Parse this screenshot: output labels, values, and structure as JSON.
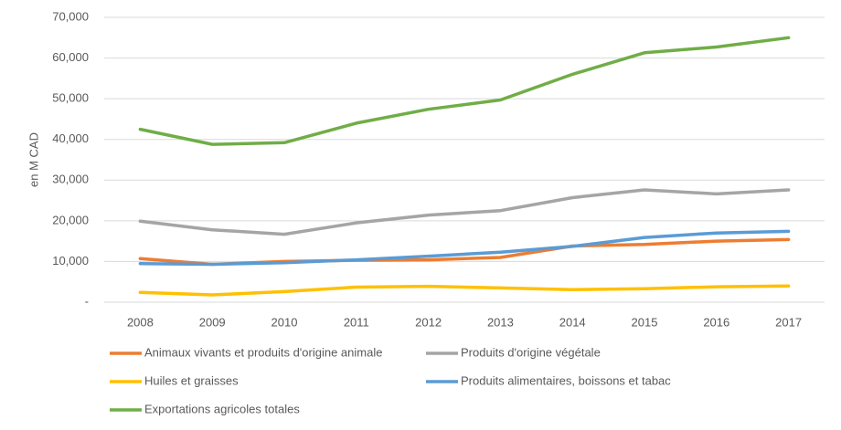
{
  "chart_data": {
    "type": "line",
    "y_label": "en M CAD",
    "categories": [
      "2008",
      "2009",
      "2010",
      "2011",
      "2012",
      "2013",
      "2014",
      "2015",
      "2016",
      "2017"
    ],
    "series": [
      {
        "name": "Animaux vivants et produits d'origine animale",
        "color": "#ed7d31",
        "values": [
          10700,
          9300,
          10000,
          10300,
          10400,
          11000,
          13800,
          14200,
          15000,
          15400
        ]
      },
      {
        "name": "Produits d'origine végétale",
        "color": "#a5a5a5",
        "values": [
          19900,
          17800,
          16700,
          19500,
          21400,
          22500,
          25700,
          27600,
          26600,
          27600
        ]
      },
      {
        "name": "Huiles et graisses",
        "color": "#ffc000",
        "values": [
          2400,
          1800,
          2600,
          3700,
          3900,
          3500,
          3100,
          3300,
          3800,
          4000
        ]
      },
      {
        "name": "Produits alimentaires, boissons et tabac",
        "color": "#5b9bd5",
        "values": [
          9500,
          9300,
          9700,
          10400,
          11300,
          12300,
          13700,
          15900,
          17000,
          17400
        ]
      },
      {
        "name": "Exportations agricoles totales",
        "color": "#70ad47",
        "values": [
          42500,
          38800,
          39200,
          44000,
          47400,
          49700,
          56000,
          61300,
          62700,
          65000
        ]
      }
    ],
    "ylim": [
      0,
      70000
    ],
    "yticks": [
      {
        "value": 0,
        "label": "-"
      },
      {
        "value": 10000,
        "label": "10,000"
      },
      {
        "value": 20000,
        "label": "20,000"
      },
      {
        "value": 30000,
        "label": "30,000"
      },
      {
        "value": 40000,
        "label": "40,000"
      },
      {
        "value": 50000,
        "label": "50,000"
      },
      {
        "value": 60000,
        "label": "60,000"
      },
      {
        "value": 70000,
        "label": "70,000"
      }
    ],
    "grid": true,
    "legend": "bottom"
  }
}
